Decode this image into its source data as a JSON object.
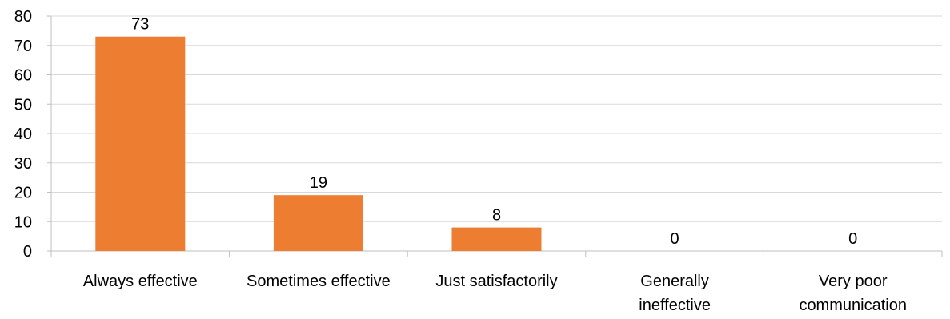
{
  "chart_data": {
    "type": "bar",
    "title": "",
    "xlabel": "",
    "ylabel": "",
    "categories": [
      "Always effective",
      "Sometimes effective",
      "Just satisfactorily",
      "Generally ineffective",
      "Very poor communication"
    ],
    "category_label_lines": [
      [
        "Always effective"
      ],
      [
        "Sometimes effective"
      ],
      [
        "Just satisfactorily"
      ],
      [
        "Generally",
        "ineffective"
      ],
      [
        "Very poor",
        "communication"
      ]
    ],
    "values": [
      73,
      19,
      8,
      0,
      0
    ],
    "data_labels": [
      "73",
      "19",
      "8",
      "0",
      "0"
    ],
    "ylim": [
      0,
      80
    ],
    "yticks": [
      0,
      10,
      20,
      30,
      40,
      50,
      60,
      70,
      80
    ],
    "ytick_labels": [
      "0",
      "10",
      "20",
      "30",
      "40",
      "50",
      "60",
      "70",
      "80"
    ],
    "grid": true,
    "legend": "none",
    "colors": {
      "bar": "#ED7D31",
      "grid": "#D9D9D9",
      "axis": "#BFBFBF",
      "text": "#000000"
    }
  }
}
